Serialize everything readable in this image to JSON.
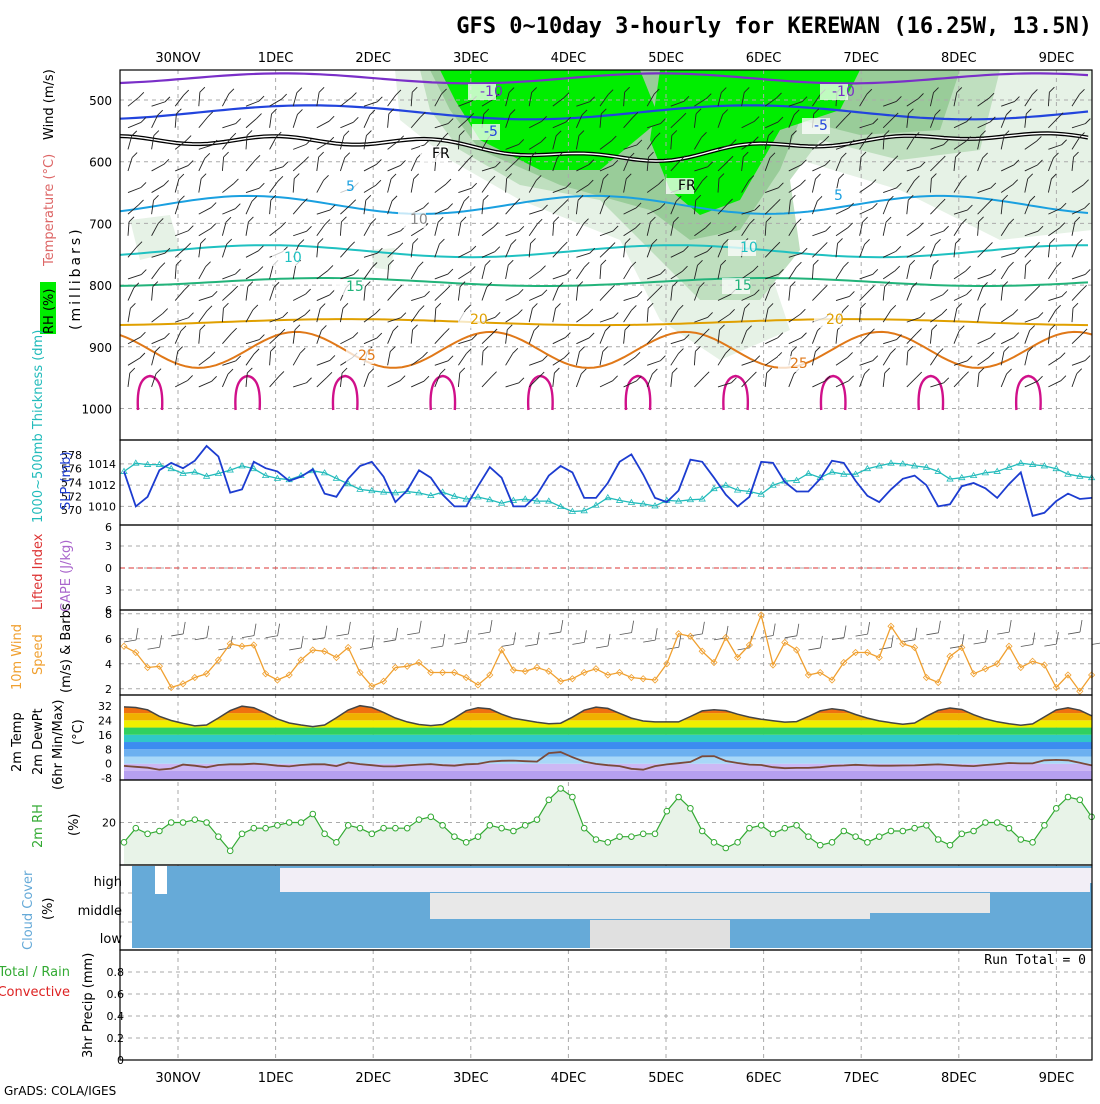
{
  "title": "GFS 0~10day 3-hourly for KEREWAN (16.25W, 13.5N)",
  "credit": "GrADS: COLA/IGES",
  "dates": [
    "30NOV",
    "1DEC",
    "2DEC",
    "3DEC",
    "4DEC",
    "5DEC",
    "6DEC",
    "7DEC",
    "8DEC",
    "9DEC"
  ],
  "colors": {
    "rh_light": "#e6f2e6",
    "rh_mid": "#bfdfbf",
    "rh_strong": "#99cc99",
    "rh_high": "#00ee00",
    "iso_violet": "#7a2fc8",
    "iso_blue": "#2244dd",
    "iso_lightblue": "#1aa0e0",
    "iso_teal": "#1fc1c1",
    "iso_green": "#22b37a",
    "iso_gold": "#e0a000",
    "iso_orange": "#e07818",
    "iso_magenta": "#d0108a",
    "slp": "#1c3cd0",
    "thickness": "#22bbbb",
    "wind10m": "#f0a030",
    "barb": "#555555",
    "dewpt": "#7a4a3a",
    "rh2m": "#33aa33",
    "cloud": "#66aad8",
    "precip_total": "#33aa33",
    "precip_conv": "#dd2222"
  },
  "panels": {
    "upper": {
      "ylabels": [
        {
          "text": "RH (%)",
          "color": "#000000"
        },
        {
          "text": "Temperature (°C)",
          "color": "#dd6666"
        },
        {
          "text": "Wind (m/s)",
          "color": "#000000"
        }
      ],
      "ylabel_m": "(millibars)",
      "ticks": [
        "500",
        "600",
        "700",
        "800",
        "900",
        "1000"
      ],
      "contour_labels": [
        "-10",
        "-10",
        "-5",
        "-5",
        "FR",
        "FR",
        "5",
        "5",
        "10",
        "10",
        "10",
        "15",
        "15",
        "20",
        "20",
        "25",
        "25"
      ]
    },
    "slp": {
      "ylabel_left": "1000~500mb Thickness (dm)",
      "ylabel_right": "SLP (mb)",
      "ticks_left": [
        "578",
        "576",
        "574",
        "572",
        "570"
      ],
      "ticks_right": [
        "1014",
        "1012",
        "1010"
      ]
    },
    "cape": {
      "ylabel_left": "Lifted Index",
      "ylabel_right": "CAPE (J/kg)",
      "ticks": [
        "6",
        "3",
        "0",
        "3",
        "6"
      ]
    },
    "wind": {
      "ylabel_left": "10m Wind",
      "ylabel_mid": "Speed",
      "ylabel_right": "(m/s) & Barbs",
      "ticks": [
        "8",
        "6",
        "4",
        "2"
      ]
    },
    "temp": {
      "ylabel_a": "2m Temp",
      "ylabel_b": "2m DewPt",
      "ylabel_c": "(6hr Min/Max)",
      "ylabel_d": "(°C)",
      "ticks": [
        "32",
        "24",
        "16",
        "8",
        "0",
        "-8"
      ]
    },
    "rh": {
      "ylabel_a": "2m RH",
      "ylabel_b": "(%)",
      "ticks": [
        "20"
      ]
    },
    "cloud": {
      "ylabel_a": "Cloud Cover",
      "ylabel_b": "(%)",
      "levels": [
        "high",
        "middle",
        "low"
      ]
    },
    "precip": {
      "ylabel_a": "Total / Rain",
      "ylabel_b": "Convective",
      "ylabel_c": "3hr Precip (mm)",
      "ticks": [
        "0.8",
        "0.6",
        "0.4",
        "0.2",
        "0"
      ],
      "run_total": "Run Total = 0"
    }
  },
  "chart_data": [
    {
      "type": "line",
      "title": "SLP (mb) / 1000~500mb Thickness (dm)",
      "series": [
        {
          "name": "SLP (mb)",
          "values": [
            1013.3,
            1010.0,
            1010.9,
            1013.4,
            1014.1,
            1013.6,
            1014.3,
            1015.7,
            1014.7,
            1011.3,
            1011.6,
            1014.2,
            1013.6,
            1013.3,
            1012.4,
            1012.8,
            1013.5,
            1011.2,
            1010.9,
            1012.6,
            1013.8,
            1014.2,
            1012.8,
            1010.4,
            1011.5,
            1013.4,
            1012.7,
            1011.1,
            1010.0,
            1010.0,
            1011.9,
            1013.7,
            1012.7,
            1010.0,
            1010.0,
            1011.1,
            1012.9,
            1013.8,
            1013.2,
            1010.8,
            1010.8,
            1012.2,
            1014.2,
            1014.9,
            1013.0,
            1010.8,
            1010.4,
            1011.5,
            1014.4,
            1014.2,
            1012.7,
            1011.1,
            1010.0,
            1010.9,
            1014.2,
            1014.1,
            1012.3,
            1011.4,
            1011.4,
            1012.6,
            1014.3,
            1014.1,
            1012.4,
            1011.0,
            1010.4,
            1011.6,
            1012.6,
            1012.9,
            1012.0,
            1010.0,
            1010.2,
            1011.9,
            1012.2,
            1011.7,
            1010.8,
            1012.1,
            1013.2,
            1009.1,
            1009.4,
            1010.5,
            1011.2,
            1010.7,
            1010.8
          ],
          "ylim": [
            1009,
            1015.5
          ]
        },
        {
          "name": "1000~500mb Thickness (dm)",
          "values": [
            575.6,
            576.8,
            576.6,
            576.6,
            576.0,
            575.3,
            575.5,
            574.9,
            575.3,
            575.8,
            576.4,
            576.0,
            575.0,
            574.6,
            574.4,
            575.0,
            575.7,
            575.4,
            574.6,
            573.8,
            573.0,
            572.8,
            572.6,
            572.5,
            572.7,
            572.5,
            572.1,
            572.6,
            572.0,
            571.6,
            571.9,
            571.5,
            571.0,
            571.4,
            571.6,
            571.3,
            571.3,
            570.5,
            569.8,
            569.9,
            570.7,
            571.8,
            571.4,
            571.1,
            570.9,
            570.6,
            571.4,
            571.3,
            571.5,
            571.6,
            573.1,
            573.6,
            572.9,
            572.7,
            572.3,
            573.6,
            574.2,
            574.3,
            575.3,
            574.7,
            575.5,
            575.2,
            575.2,
            576.0,
            576.4,
            576.8,
            576.7,
            576.4,
            576.2,
            575.6,
            574.5,
            574.7,
            575.0,
            575.4,
            575.6,
            576.2,
            576.8,
            576.6,
            576.4,
            576.0,
            575.2,
            574.9,
            574.7
          ],
          "ylim": [
            569,
            579
          ]
        }
      ]
    },
    {
      "type": "line",
      "title": "10m Wind Speed (m/s)",
      "series": [
        {
          "name": "10m Wind Speed",
          "values": [
            5.4,
            4.9,
            3.7,
            3.8,
            2.1,
            2.4,
            2.9,
            3.2,
            4.3,
            5.6,
            5.4,
            5.5,
            3.2,
            2.7,
            3.1,
            4.3,
            5.1,
            5.0,
            4.5,
            5.3,
            3.3,
            2.2,
            2.6,
            3.7,
            3.8,
            4.1,
            3.3,
            3.3,
            3.3,
            2.9,
            2.3,
            3.1,
            5.1,
            3.5,
            3.4,
            3.7,
            3.4,
            2.6,
            2.8,
            3.3,
            3.6,
            3.1,
            3.3,
            2.9,
            2.8,
            2.7,
            4.0,
            6.4,
            6.2,
            5.0,
            4.1,
            6.1,
            4.5,
            5.5,
            7.9,
            3.9,
            5.7,
            5.1,
            3.1,
            3.3,
            2.7,
            4.1,
            4.9,
            4.9,
            4.5,
            7.0,
            5.6,
            5.3,
            2.9,
            2.5,
            4.6,
            5.3,
            3.2,
            3.6,
            4.0,
            5.4,
            3.7,
            4.2,
            3.9,
            2.1,
            3.1,
            1.8,
            3.1
          ]
        }
      ],
      "ylim": [
        1.5,
        8.3
      ]
    },
    {
      "type": "area",
      "title": "2m Temp / 2m DewPt (°C)",
      "series": [
        {
          "name": "2m Temp",
          "values": [
            31.4,
            31.1,
            29.8,
            26.2,
            23.9,
            22.3,
            20.9,
            21.4,
            25.3,
            29.4,
            31.8,
            31.0,
            28.1,
            24.8,
            22.5,
            21.4,
            20.5,
            21.4,
            25.4,
            29.7,
            32.1,
            31.1,
            28.4,
            25.3,
            23.1,
            21.7,
            21.1,
            21.7,
            25.2,
            29.3,
            31.0,
            30.3,
            27.4,
            25.1,
            24.0,
            22.9,
            22.1,
            22.4,
            25.7,
            29.6,
            31.3,
            30.6,
            27.9,
            25.2,
            23.6,
            23.1,
            23.1,
            23.1,
            26.1,
            29.2,
            29.8,
            29.4,
            27.4,
            25.8,
            24.6,
            23.8,
            23.0,
            23.3,
            26.1,
            29.2,
            30.4,
            29.6,
            27.2,
            25.2,
            23.7,
            22.7,
            21.8,
            22.5,
            26.2,
            29.5,
            30.8,
            30.0,
            27.1,
            24.8,
            23.2,
            22.1,
            21.3,
            22.0,
            25.9,
            29.7,
            30.9,
            29.6,
            26.5
          ]
        },
        {
          "name": "2m DewPt",
          "values": [
            -1.2,
            -1.7,
            -2.2,
            -3.3,
            -2.7,
            -0.5,
            -1.1,
            -2.0,
            -0.7,
            -0.3,
            -0.3,
            0.0,
            -0.4,
            -1.1,
            -1.5,
            -0.7,
            -0.3,
            -0.3,
            -1.3,
            0.7,
            -0.2,
            -0.8,
            -1.5,
            -1.4,
            -0.9,
            -0.5,
            -0.2,
            -0.8,
            -1.1,
            -0.3,
            -0.1,
            1.2,
            1.6,
            1.7,
            1.4,
            1.2,
            5.9,
            6.4,
            3.6,
            1.2,
            -0.1,
            -0.8,
            -1.3,
            -2.8,
            -3.3,
            -1.3,
            -0.4,
            0.3,
            1.0,
            4.1,
            4.2,
            1.5,
            0.4,
            -0.5,
            -0.7,
            -1.9,
            -2.5,
            -2.3,
            -2.3,
            -1.9,
            -1.2,
            -1.0,
            -0.6,
            -0.9,
            -1.1,
            -1.1,
            -1.0,
            -0.9,
            -0.6,
            -0.4,
            -0.7,
            -1.1,
            -1.3,
            -0.7,
            -0.2,
            0.4,
            0.2,
            0.2,
            1.9,
            2.1,
            1.9,
            0.5,
            -0.9
          ]
        }
      ],
      "ylim": [
        -9,
        38
      ]
    },
    {
      "type": "area",
      "title": "2m RH (%)",
      "series": [
        {
          "name": "2m RH",
          "values": [
            13,
            18,
            16,
            17,
            20,
            20,
            21,
            20,
            15,
            10,
            16,
            18,
            18,
            19,
            20,
            20,
            23,
            16,
            13,
            19,
            18,
            16,
            18,
            18,
            18,
            21,
            22,
            19,
            15,
            13,
            15,
            19,
            18,
            17,
            19,
            21,
            28,
            32,
            29,
            18,
            14,
            13,
            15,
            15,
            16,
            16,
            24,
            29,
            25,
            17,
            13,
            11,
            13,
            18,
            19,
            16,
            18,
            19,
            15,
            12,
            13,
            17,
            15,
            13,
            15,
            17,
            17,
            18,
            19,
            14,
            12,
            16,
            17,
            20,
            20,
            18,
            14,
            13,
            19,
            25,
            29,
            28,
            22
          ]
        }
      ],
      "ylim": [
        5,
        35
      ]
    },
    {
      "type": "line",
      "title": "3hr Precip (mm)",
      "series": [
        {
          "name": "Total / Rain",
          "values": [
            0,
            0,
            0,
            0,
            0,
            0,
            0,
            0,
            0,
            0
          ]
        }
      ],
      "ylim": [
        0,
        1
      ]
    }
  ]
}
